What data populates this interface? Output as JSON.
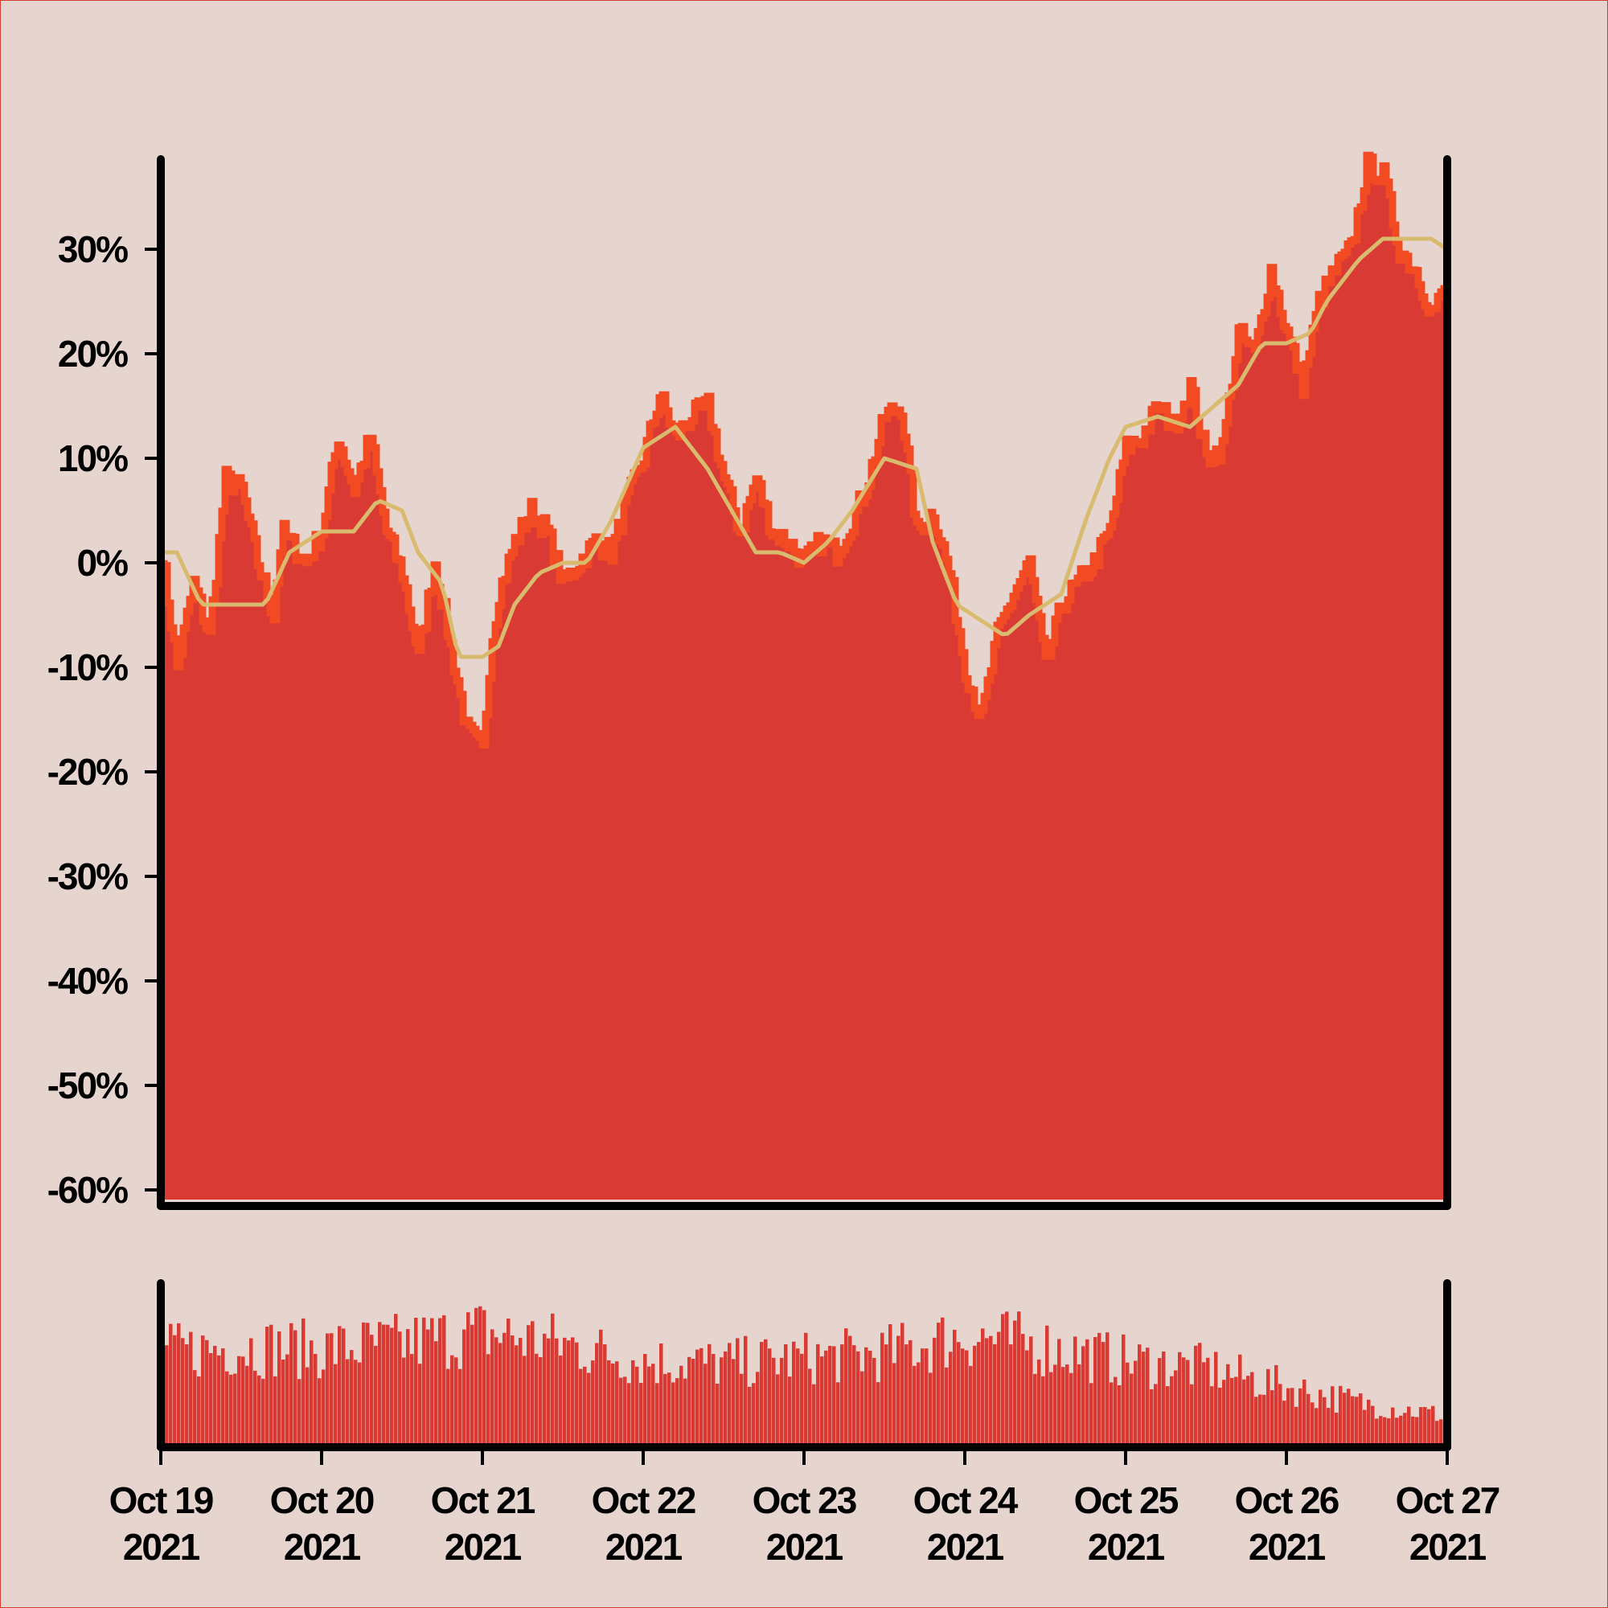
{
  "chart_data": {
    "type": "area",
    "title": "",
    "xlabel": "",
    "ylabel": "",
    "x_range": [
      "2021-10-19",
      "2021-10-27"
    ],
    "x_tick_labels": [
      {
        "line1": "Oct 19",
        "line2": "2021"
      },
      {
        "line1": "Oct 20",
        "line2": "2021"
      },
      {
        "line1": "Oct 21",
        "line2": "2021"
      },
      {
        "line1": "Oct 22",
        "line2": "2021"
      },
      {
        "line1": "Oct 23",
        "line2": "2021"
      },
      {
        "line1": "Oct 24",
        "line2": "2021"
      },
      {
        "line1": "Oct 25",
        "line2": "2021"
      },
      {
        "line1": "Oct 26",
        "line2": "2021"
      },
      {
        "line1": "Oct 27",
        "line2": "2021"
      }
    ],
    "y_tick_labels": [
      "30%",
      "20%",
      "10%",
      "0%",
      "-10%",
      "-20%",
      "-30%",
      "-40%",
      "-50%",
      "-60%"
    ],
    "y_ticks": [
      30,
      20,
      10,
      0,
      -10,
      -20,
      -30,
      -40,
      -50,
      -60
    ],
    "ylim": [
      -61,
      38
    ],
    "grid": false,
    "legend": "none",
    "colors": {
      "area_fill": "#d93a34",
      "area_edge": "#f24a22",
      "moving_average": "#d9bb70",
      "volume": "#d93a34",
      "axes": "#000000",
      "background": "#e5d5ce"
    },
    "series": [
      {
        "type": "area",
        "unit": "%",
        "days": [
          0,
          0.1,
          0.2,
          0.3,
          0.4,
          0.5,
          0.6,
          0.7,
          0.75,
          0.8,
          0.9,
          1.0,
          1.1,
          1.2,
          1.3,
          1.4,
          1.5,
          1.6,
          1.7,
          1.8,
          1.9,
          2.0,
          2.05,
          2.1,
          2.2,
          2.3,
          2.4,
          2.5,
          2.6,
          2.7,
          2.8,
          2.9,
          3.0,
          3.1,
          3.2,
          3.3,
          3.4,
          3.5,
          3.6,
          3.7,
          3.8,
          3.9,
          4.0,
          4.1,
          4.2,
          4.3,
          4.4,
          4.5,
          4.6,
          4.7,
          4.8,
          4.9,
          5.0,
          5.1,
          5.2,
          5.3,
          5.4,
          5.5,
          5.6,
          5.7,
          5.8,
          5.9,
          6.0,
          6.1,
          6.2,
          6.3,
          6.4,
          6.5,
          6.6,
          6.7,
          6.8,
          6.9,
          7.0,
          7.1,
          7.2,
          7.3,
          7.4,
          7.5,
          7.6,
          7.7,
          7.8,
          7.9,
          7.95,
          8.0
        ],
        "values": [
          1,
          -10,
          -2,
          -7,
          8,
          7,
          0,
          -5,
          3,
          2,
          0,
          3,
          12,
          7,
          12,
          3,
          -1,
          -9,
          0,
          -8,
          -16,
          -18,
          -8,
          -3,
          2,
          5,
          3,
          -2,
          0,
          2,
          1,
          6,
          10,
          16,
          12,
          14,
          15,
          8,
          3,
          8,
          3,
          2,
          0,
          2,
          1,
          4,
          8,
          14,
          15,
          3,
          5,
          -1,
          -10,
          -15,
          -7,
          -3,
          0,
          -10,
          -4,
          -2,
          0,
          3,
          11,
          12,
          15,
          13,
          17,
          10,
          11,
          22,
          20,
          28,
          22,
          17,
          25,
          28,
          30,
          38,
          37,
          30,
          28,
          24,
          25,
          27
        ]
      },
      {
        "type": "line",
        "unit": "%",
        "days": [
          0,
          0.1,
          0.25,
          0.5,
          0.65,
          0.8,
          1.0,
          1.2,
          1.35,
          1.5,
          1.6,
          1.75,
          1.85,
          2.0,
          2.1,
          2.2,
          2.35,
          2.5,
          2.65,
          2.8,
          3.0,
          3.2,
          3.4,
          3.55,
          3.7,
          3.85,
          4.0,
          4.15,
          4.3,
          4.5,
          4.7,
          4.8,
          4.95,
          5.05,
          5.25,
          5.4,
          5.5,
          5.6,
          5.75,
          5.9,
          6.0,
          6.2,
          6.4,
          6.55,
          6.7,
          6.85,
          7.0,
          7.15,
          7.25,
          7.35,
          7.45,
          7.6,
          7.75,
          7.9,
          8.0
        ],
        "values": [
          1,
          1,
          -4,
          -4,
          -4,
          1,
          3,
          3,
          6,
          5,
          1,
          -2,
          -9,
          -9,
          -8,
          -4,
          -1,
          0,
          0,
          4,
          11,
          13,
          9,
          5,
          1,
          1,
          0,
          2,
          5,
          10,
          9,
          2,
          -4,
          -5,
          -7,
          -5,
          -4,
          -3,
          4,
          10,
          13,
          14,
          13,
          15,
          17,
          21,
          21,
          22,
          25,
          27,
          29,
          31,
          31,
          31,
          30
        ]
      }
    ],
    "volume": {
      "type": "bar",
      "ylim": [
        0,
        1
      ],
      "note_levels": "relative heights 0-1 read from the lower panel",
      "days": [
        0,
        0.5,
        1.0,
        1.5,
        2.0,
        2.5,
        3.0,
        3.5,
        4.0,
        4.5,
        5.0,
        5.5,
        6.0,
        6.5,
        7.0,
        7.5,
        8.0
      ],
      "levels": [
        0.66,
        0.7,
        0.68,
        0.72,
        0.8,
        0.72,
        0.6,
        0.58,
        0.62,
        0.65,
        0.78,
        0.7,
        0.6,
        0.55,
        0.42,
        0.3,
        0.22
      ]
    }
  }
}
